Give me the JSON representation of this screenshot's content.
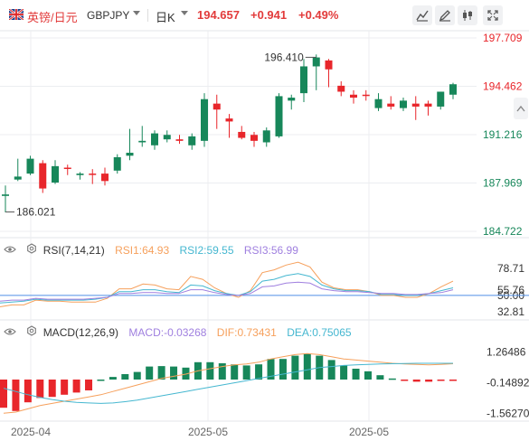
{
  "header": {
    "pair_name": "英镑/日元",
    "symbol": "GBPJPY",
    "timeframe": "日K",
    "price": "194.657",
    "change": "+0.941",
    "change_pct": "+0.49%",
    "icons": [
      "uk-flag-icon",
      "draw-line-icon",
      "pencil-icon",
      "candle-type-icon",
      "fullscreen-icon"
    ]
  },
  "colors": {
    "up": "#e8262b",
    "down": "#17875a",
    "rsi1": "#f6a05c",
    "rsi2": "#45b7d0",
    "rsi3": "#9f7fdf",
    "dif": "#f6a05c",
    "dea": "#45b7d0",
    "grid": "#eceef1",
    "axis_text": "#333333"
  },
  "chart_data": [
    {
      "type": "candlestick",
      "title": "GBPJPY",
      "y_ticks": [
        "197.709",
        "194.462",
        "191.216",
        "187.969",
        "184.722"
      ],
      "y_tick_colors": [
        "#e8262b",
        "#e8262b",
        "#17875a",
        "#17875a",
        "#17875a"
      ],
      "ylim": [
        184.722,
        197.709
      ],
      "x_ticks": [
        "2025-04",
        "2025-05",
        "2025-05"
      ],
      "annotations": [
        {
          "label": "186.021",
          "value": 186.021
        },
        {
          "label": "196.410",
          "value": 196.41
        }
      ],
      "candles": [
        {
          "o": 187.2,
          "h": 187.8,
          "l": 186.0,
          "c": 187.1
        },
        {
          "o": 188.4,
          "h": 189.6,
          "l": 188.1,
          "c": 188.2
        },
        {
          "o": 189.6,
          "h": 189.8,
          "l": 188.5,
          "c": 188.6
        },
        {
          "o": 187.6,
          "h": 189.5,
          "l": 187.3,
          "c": 189.3
        },
        {
          "o": 189.1,
          "h": 189.5,
          "l": 187.9,
          "c": 188.0
        },
        {
          "o": 189.0,
          "h": 189.2,
          "l": 188.5,
          "c": 189.0
        },
        {
          "o": 188.6,
          "h": 188.7,
          "l": 188.2,
          "c": 188.5
        },
        {
          "o": 188.6,
          "h": 188.9,
          "l": 187.9,
          "c": 188.6
        },
        {
          "o": 188.6,
          "h": 189.0,
          "l": 187.8,
          "c": 188.1
        },
        {
          "o": 189.7,
          "h": 189.9,
          "l": 188.6,
          "c": 188.8
        },
        {
          "o": 189.8,
          "h": 191.6,
          "l": 189.5,
          "c": 190.0
        },
        {
          "o": 190.7,
          "h": 191.8,
          "l": 190.4,
          "c": 190.8
        },
        {
          "o": 191.3,
          "h": 191.5,
          "l": 190.2,
          "c": 190.5
        },
        {
          "o": 191.2,
          "h": 191.5,
          "l": 190.7,
          "c": 190.9
        },
        {
          "o": 190.8,
          "h": 191.2,
          "l": 190.6,
          "c": 190.9
        },
        {
          "o": 191.1,
          "h": 191.3,
          "l": 190.2,
          "c": 190.5
        },
        {
          "o": 193.6,
          "h": 194.0,
          "l": 190.4,
          "c": 190.8
        },
        {
          "o": 193.3,
          "h": 193.9,
          "l": 191.6,
          "c": 192.9
        },
        {
          "o": 192.1,
          "h": 192.6,
          "l": 191.0,
          "c": 192.3
        },
        {
          "o": 191.4,
          "h": 191.8,
          "l": 190.9,
          "c": 191.0
        },
        {
          "o": 190.8,
          "h": 191.4,
          "l": 190.4,
          "c": 191.2
        },
        {
          "o": 191.5,
          "h": 191.7,
          "l": 190.4,
          "c": 190.7
        },
        {
          "o": 193.8,
          "h": 194.0,
          "l": 191.0,
          "c": 191.1
        },
        {
          "o": 193.5,
          "h": 193.9,
          "l": 192.9,
          "c": 193.7
        },
        {
          "o": 195.8,
          "h": 196.3,
          "l": 193.4,
          "c": 194.0
        },
        {
          "o": 196.4,
          "h": 196.6,
          "l": 194.2,
          "c": 195.8
        },
        {
          "o": 195.6,
          "h": 196.3,
          "l": 194.4,
          "c": 196.2
        },
        {
          "o": 194.5,
          "h": 194.8,
          "l": 193.8,
          "c": 194.1
        },
        {
          "o": 193.9,
          "h": 194.2,
          "l": 193.3,
          "c": 193.7
        },
        {
          "o": 193.9,
          "h": 194.2,
          "l": 193.5,
          "c": 193.9
        },
        {
          "o": 193.6,
          "h": 194.0,
          "l": 192.8,
          "c": 193.0
        },
        {
          "o": 193.1,
          "h": 193.8,
          "l": 192.9,
          "c": 193.3
        },
        {
          "o": 193.5,
          "h": 193.7,
          "l": 192.8,
          "c": 193.0
        },
        {
          "o": 193.3,
          "h": 193.8,
          "l": 192.2,
          "c": 193.1
        },
        {
          "o": 193.1,
          "h": 193.5,
          "l": 192.5,
          "c": 193.3
        },
        {
          "o": 194.1,
          "h": 194.1,
          "l": 192.9,
          "c": 193.1
        },
        {
          "o": 194.6,
          "h": 194.7,
          "l": 193.6,
          "c": 193.9
        }
      ],
      "candle_dirs": [
        "down",
        "down",
        "down",
        "up",
        "down",
        "up",
        "down",
        "up",
        "up",
        "down",
        "down",
        "down",
        "down",
        "down",
        "up",
        "down",
        "down",
        "up",
        "up",
        "up",
        "up",
        "down",
        "down",
        "down",
        "down",
        "down",
        "up",
        "up",
        "up",
        "up",
        "down",
        "up",
        "down",
        "up",
        "up",
        "down",
        "down"
      ]
    },
    {
      "type": "line",
      "title": "RSI(7,14,21)",
      "legend": [
        {
          "label": "RSI1:64.93",
          "color": "#f6a05c"
        },
        {
          "label": "RSI2:59.55",
          "color": "#45b7d0"
        },
        {
          "label": "RSI3:56.99",
          "color": "#9f7fdf"
        }
      ],
      "y_ticks": [
        "78.71",
        "55.76",
        "50.00",
        "32.81"
      ],
      "y_tick_values": [
        78.71,
        55.76,
        50.0,
        32.81
      ],
      "ylim": [
        28,
        88
      ],
      "reference_line": 50.0,
      "series": [
        {
          "name": "RSI1",
          "color": "#f6a05c",
          "values": [
            38,
            40,
            40,
            45,
            44,
            44,
            43,
            43,
            43,
            47,
            57,
            57,
            62,
            61,
            57,
            56,
            70,
            67,
            58,
            52,
            48,
            55,
            74,
            77,
            82,
            85,
            80,
            64,
            58,
            56,
            56,
            54,
            50,
            50,
            48,
            48,
            52,
            59,
            65
          ]
        },
        {
          "name": "RSI2",
          "color": "#45b7d0",
          "values": [
            42,
            43,
            44,
            46,
            45,
            45,
            45,
            45,
            46,
            48,
            54,
            54,
            56,
            56,
            54,
            53,
            61,
            60,
            55,
            52,
            50,
            54,
            65,
            67,
            71,
            73,
            70,
            61,
            57,
            55,
            55,
            54,
            51,
            51,
            50,
            50,
            52,
            55,
            58
          ]
        },
        {
          "name": "RSI3",
          "color": "#9f7fdf",
          "values": [
            44,
            45,
            45,
            47,
            46,
            46,
            46,
            46,
            47,
            48,
            52,
            52,
            53,
            53,
            52,
            52,
            56,
            56,
            53,
            51,
            50,
            52,
            59,
            60,
            63,
            64,
            63,
            57,
            55,
            54,
            54,
            53,
            52,
            52,
            51,
            51,
            52,
            53,
            56
          ]
        }
      ]
    },
    {
      "type": "bar",
      "title": "MACD(12,26,9)",
      "legend": [
        {
          "label": "MACD:-0.03268",
          "color": "#9f7fdf"
        },
        {
          "label": "DIF:0.73431",
          "color": "#f6a05c"
        },
        {
          "label": "DEA:0.75065",
          "color": "#45b7d0"
        }
      ],
      "y_ticks": [
        "1.26486",
        "-0.14892",
        "-1.56270"
      ],
      "y_tick_values": [
        1.26486,
        -0.14892,
        -1.5627
      ],
      "ylim": [
        -1.75,
        1.75
      ],
      "histogram": [
        -1.3,
        -1.45,
        -1.05,
        -0.85,
        -0.8,
        -0.7,
        -0.6,
        -0.5,
        0.0,
        0.12,
        0.25,
        0.35,
        0.6,
        0.62,
        0.6,
        0.55,
        0.8,
        0.8,
        0.75,
        0.7,
        0.65,
        0.7,
        0.95,
        0.95,
        1.1,
        1.2,
        1.1,
        0.9,
        0.65,
        0.5,
        0.38,
        0.2,
        0.05,
        -0.05,
        -0.1,
        -0.1,
        -0.05,
        -0.03
      ],
      "series": [
        {
          "name": "DIF",
          "color": "#f6a05c",
          "values": [
            -1.55,
            -1.5,
            -1.35,
            -1.2,
            -1.1,
            -1.0,
            -0.9,
            -0.8,
            -0.7,
            -0.55,
            -0.4,
            -0.25,
            -0.1,
            0.05,
            0.15,
            0.25,
            0.4,
            0.5,
            0.6,
            0.68,
            0.72,
            0.8,
            0.95,
            1.05,
            1.15,
            1.2,
            1.15,
            1.05,
            0.95,
            0.9,
            0.85,
            0.8,
            0.75,
            0.72,
            0.7,
            0.68,
            0.7,
            0.73
          ]
        },
        {
          "name": "DEA",
          "color": "#45b7d0",
          "values": [
            -0.4,
            -0.55,
            -0.7,
            -0.82,
            -0.92,
            -1.0,
            -1.05,
            -1.08,
            -1.1,
            -1.08,
            -1.02,
            -0.95,
            -0.85,
            -0.75,
            -0.65,
            -0.55,
            -0.45,
            -0.35,
            -0.25,
            -0.15,
            -0.05,
            0.05,
            0.15,
            0.25,
            0.35,
            0.45,
            0.55,
            0.6,
            0.65,
            0.68,
            0.7,
            0.72,
            0.73,
            0.74,
            0.75,
            0.75,
            0.75,
            0.75
          ]
        }
      ]
    }
  ]
}
